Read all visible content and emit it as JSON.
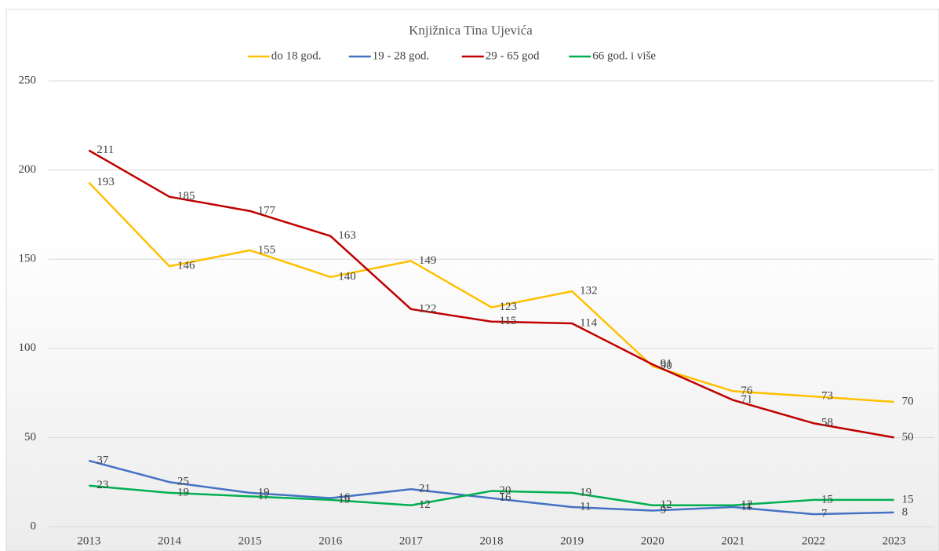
{
  "chart_data": {
    "type": "line",
    "title": "Knjižnica Tina Ujevića",
    "categories": [
      "2013",
      "2014",
      "2015",
      "2016",
      "2017",
      "2018",
      "2019",
      "2020",
      "2021",
      "2022",
      "2023"
    ],
    "series": [
      {
        "name": "do 18 god.",
        "color": "#FFC000",
        "values": [
          193,
          146,
          155,
          140,
          149,
          123,
          132,
          90,
          76,
          73,
          70
        ]
      },
      {
        "name": "19 - 28 god.",
        "color": "#4472C4",
        "values": [
          37,
          25,
          19,
          16,
          21,
          16,
          11,
          9,
          11,
          7,
          8
        ]
      },
      {
        "name": "29 - 65 god",
        "color": "#C00000",
        "values": [
          211,
          185,
          177,
          163,
          122,
          115,
          114,
          91,
          71,
          58,
          50
        ]
      },
      {
        "name": "66 god. i više",
        "color": "#00B050",
        "values": [
          23,
          19,
          17,
          15,
          12,
          20,
          19,
          12,
          12,
          15,
          15
        ]
      }
    ],
    "ylim": [
      0,
      250
    ],
    "yticks": [
      0,
      50,
      100,
      150,
      200,
      250
    ],
    "grid": true,
    "legend": "top"
  }
}
